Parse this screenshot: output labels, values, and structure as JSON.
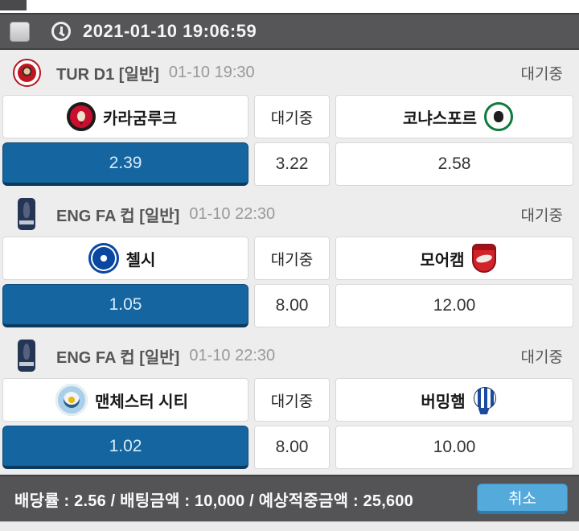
{
  "top_bar": {
    "timestamp": "2021-01-10 19:06:59",
    "checkbox_checked": false
  },
  "matches": [
    {
      "league": "TUR D1  [일반]",
      "datetime": "01-10 19:30",
      "status": "대기중",
      "league_logo": "tur",
      "home": {
        "name": "카라굼루크",
        "logo": "karagumruk"
      },
      "center": "대기중",
      "away": {
        "name": "코냐스포르",
        "logo": "konyaspor"
      },
      "odds": {
        "home": "2.39",
        "draw": "3.22",
        "away": "2.58"
      },
      "selected": "home"
    },
    {
      "league": "ENG FA 컵  [일반]",
      "datetime": "01-10 22:30",
      "status": "대기중",
      "league_logo": "facup",
      "home": {
        "name": "첼시",
        "logo": "chelsea"
      },
      "center": "대기중",
      "away": {
        "name": "모어캠",
        "logo": "morecambe"
      },
      "odds": {
        "home": "1.05",
        "draw": "8.00",
        "away": "12.00"
      },
      "selected": "home"
    },
    {
      "league": "ENG FA 컵  [일반]",
      "datetime": "01-10 22:30",
      "status": "대기중",
      "league_logo": "facup",
      "home": {
        "name": "맨체스터 시티",
        "logo": "mancity"
      },
      "center": "대기중",
      "away": {
        "name": "버밍햄",
        "logo": "birmingham"
      },
      "odds": {
        "home": "1.02",
        "draw": "8.00",
        "away": "10.00"
      },
      "selected": "home"
    }
  ],
  "footer": {
    "summary": "배당률 : 2.56 / 배팅금액 : 10,000 / 예상적중금액 : 25,600",
    "total_odds": "2.56",
    "bet_amount": "10,000",
    "expected_payout": "25,600",
    "cancel_label": "취소"
  },
  "colors": {
    "selected_odds": "#1565a0",
    "cancel_button": "#55aadc",
    "bar": "#565659"
  }
}
